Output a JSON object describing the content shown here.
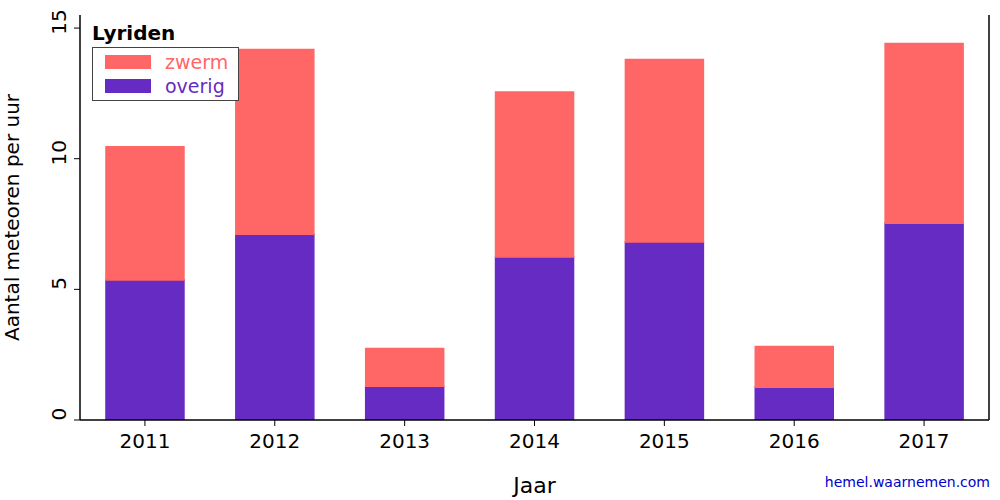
{
  "chart_data": {
    "type": "bar",
    "title": "Lyriden",
    "x_label": "Jaar",
    "y_label": "Aantal meteoren per uur",
    "annotation": "hemel.waarnemen.com",
    "categories": [
      "2011",
      "2012",
      "2013",
      "2014",
      "2015",
      "2016",
      "2017"
    ],
    "series": [
      {
        "name": "zwerm",
        "color": "#ff6666",
        "values": [
          5.1,
          7.07,
          1.45,
          6.31,
          6.99,
          1.56,
          6.88
        ]
      },
      {
        "name": "overig",
        "color": "#662bc2",
        "values": [
          5.36,
          7.11,
          1.29,
          6.24,
          6.81,
          1.25,
          7.53
        ]
      }
    ],
    "stacked": true,
    "legend": "upper left",
    "ylim": [
      0,
      15.5
    ],
    "yticks": [
      0,
      5,
      10,
      15
    ],
    "grid": false
  }
}
